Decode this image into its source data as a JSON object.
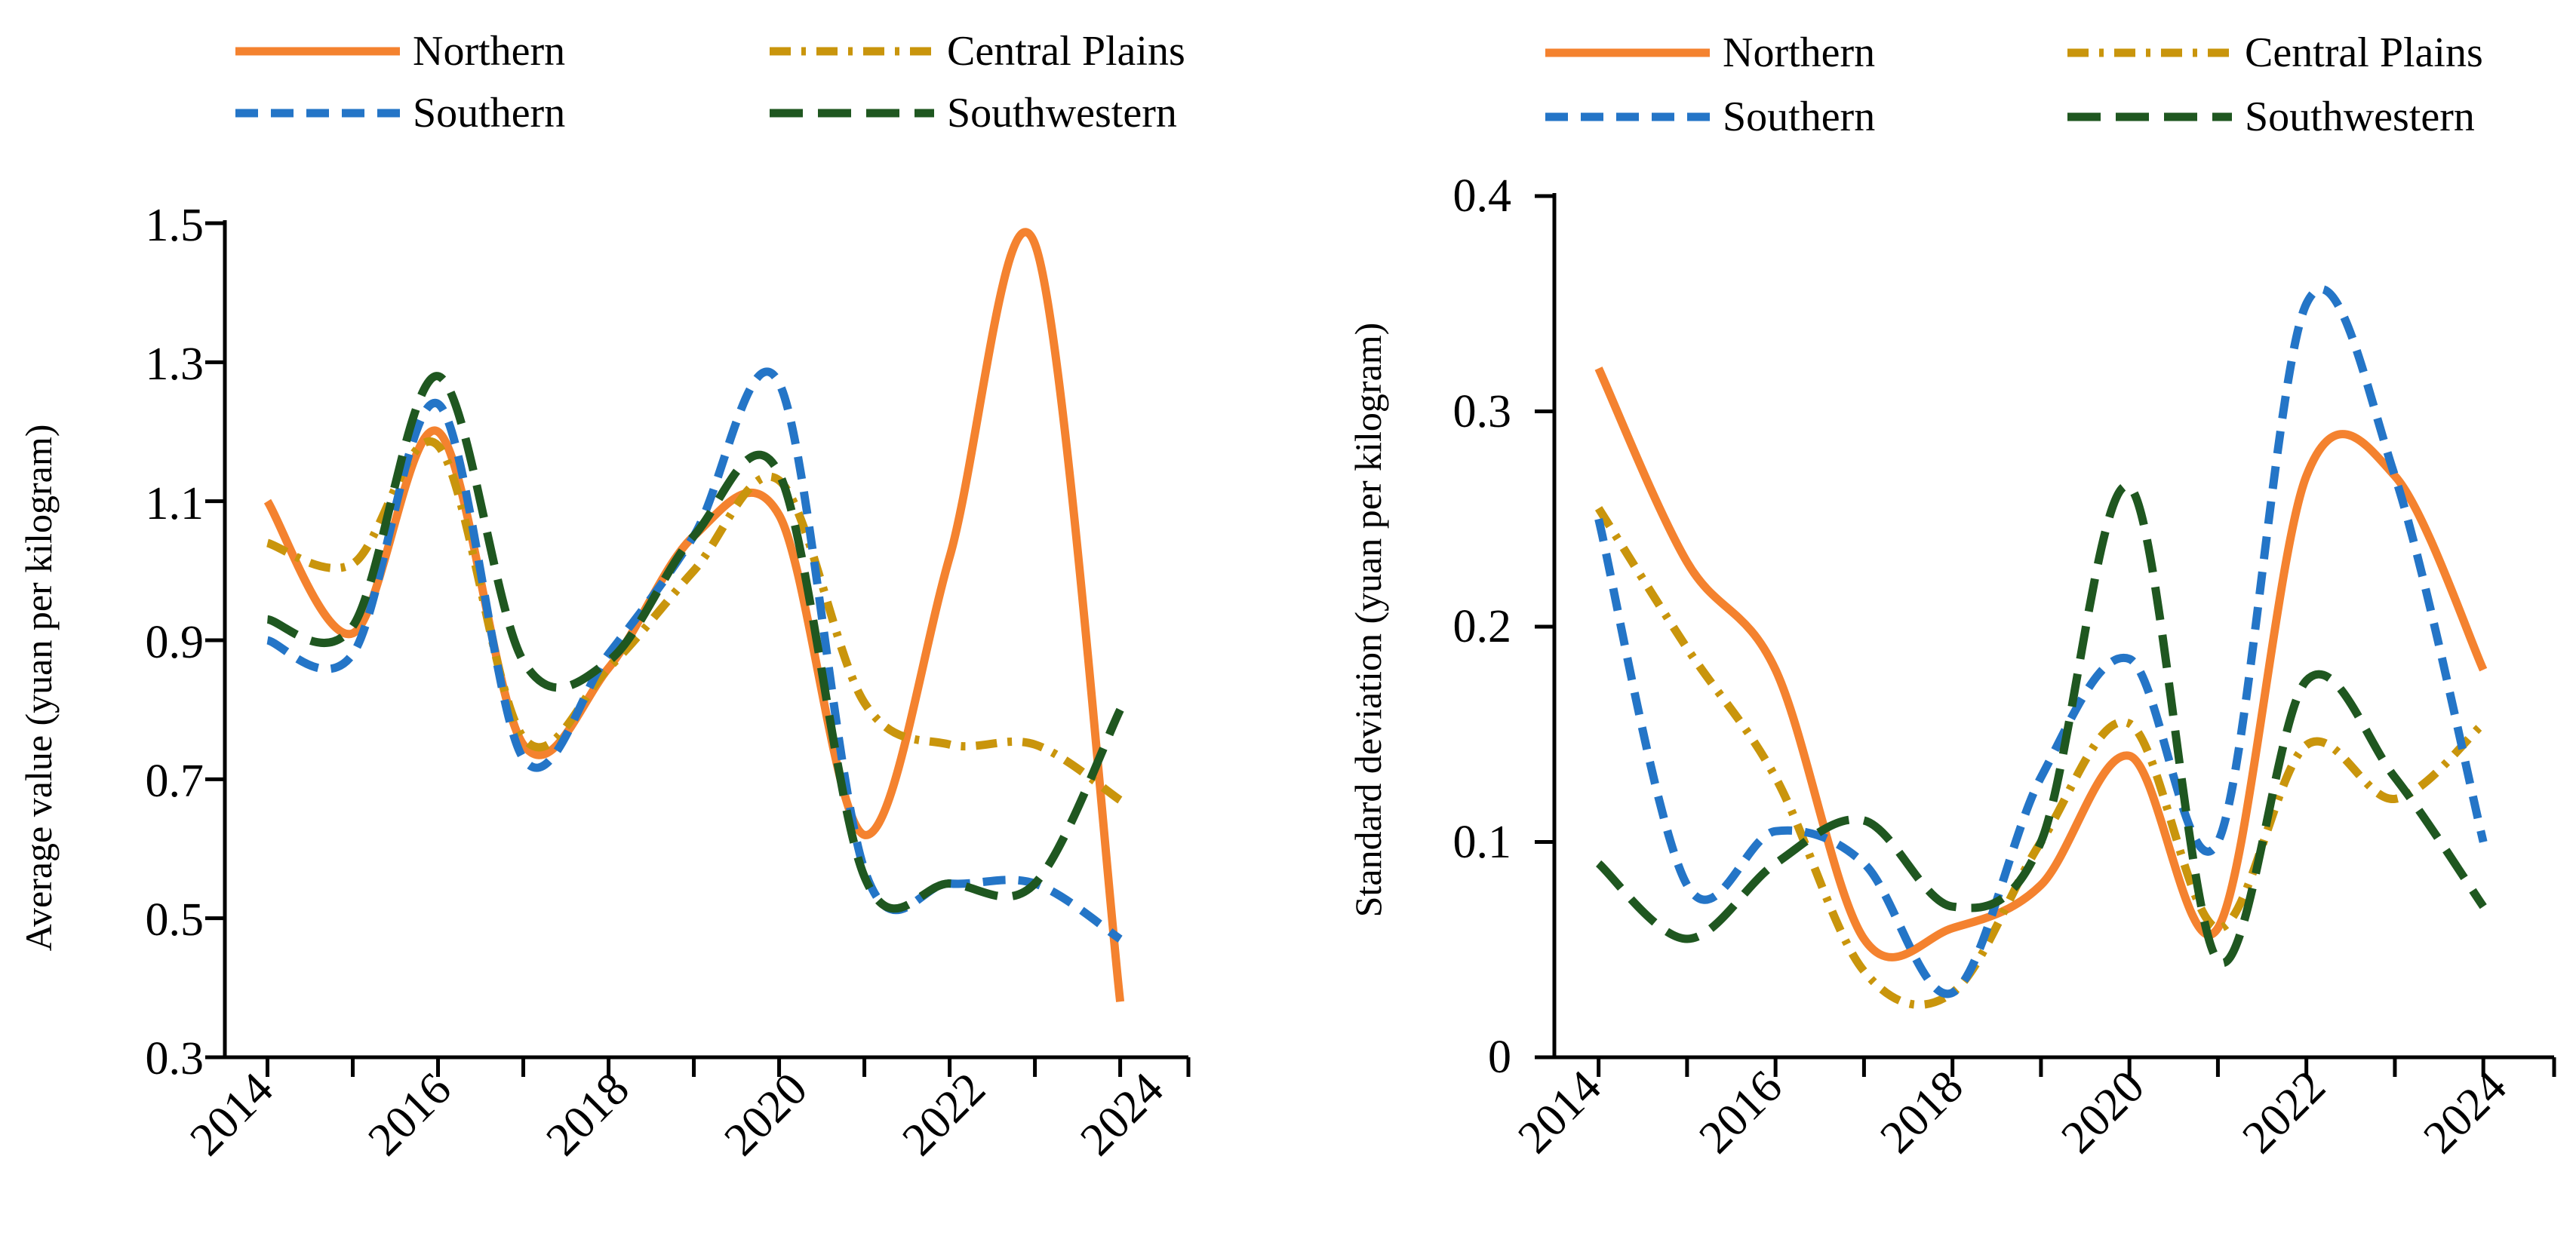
{
  "chart_data": [
    {
      "type": "line",
      "title": "",
      "xlabel": "",
      "ylabel": "Average value (yuan per kilogram)",
      "xlim": [
        2013.5,
        2024.8
      ],
      "ylim": [
        0.3,
        1.5
      ],
      "yticks": [
        "0.3",
        "0.5",
        "0.7",
        "0.9",
        "1.1",
        "1.3",
        "1.5"
      ],
      "xticks": [
        "2014",
        "2016",
        "2018",
        "2020",
        "2022",
        "2024"
      ],
      "x": [
        2014,
        2015,
        2016,
        2017,
        2018,
        2019,
        2020,
        2021,
        2022,
        2023,
        2024
      ],
      "legend_position": "top",
      "series": [
        {
          "name": "Northern",
          "color": "#F4822F",
          "dash": "solid",
          "values": [
            1.1,
            0.91,
            1.2,
            0.75,
            0.86,
            1.05,
            1.08,
            0.62,
            1.02,
            1.47,
            0.38
          ]
        },
        {
          "name": "Central Plains",
          "color": "#C9950C",
          "dash": "dashdot",
          "values": [
            1.04,
            1.01,
            1.18,
            0.76,
            0.86,
            1.0,
            1.13,
            0.81,
            0.75,
            0.75,
            0.67
          ]
        },
        {
          "name": "Southern",
          "color": "#2475C7",
          "dash": "dash",
          "values": [
            0.9,
            0.88,
            1.24,
            0.73,
            0.88,
            1.05,
            1.27,
            0.57,
            0.55,
            0.55,
            0.47
          ]
        },
        {
          "name": "Southwestern",
          "color": "#1F5720",
          "dash": "longdash",
          "values": [
            0.93,
            0.92,
            1.28,
            0.87,
            0.87,
            1.05,
            1.14,
            0.56,
            0.55,
            0.55,
            0.8
          ]
        }
      ]
    },
    {
      "type": "line",
      "title": "",
      "xlabel": "",
      "ylabel": "Standard deviation (yuan per kilogram)",
      "xlim": [
        2013.5,
        2024.8
      ],
      "ylim": [
        0,
        0.4
      ],
      "yticks": [
        "0",
        "0.1",
        "0.2",
        "0.3",
        "0.4"
      ],
      "xticks": [
        "2014",
        "2016",
        "2018",
        "2020",
        "2022",
        "2024"
      ],
      "x": [
        2014,
        2015,
        2016,
        2017,
        2018,
        2019,
        2020,
        2021,
        2022,
        2023,
        2024
      ],
      "legend_position": "top",
      "series": [
        {
          "name": "Northern",
          "color": "#F4822F",
          "dash": "solid",
          "values": [
            0.32,
            0.23,
            0.18,
            0.055,
            0.06,
            0.08,
            0.14,
            0.06,
            0.27,
            0.27,
            0.18
          ]
        },
        {
          "name": "Central Plains",
          "color": "#C9950C",
          "dash": "dashdot",
          "values": [
            0.255,
            0.19,
            0.13,
            0.04,
            0.03,
            0.1,
            0.155,
            0.06,
            0.145,
            0.12,
            0.155
          ]
        },
        {
          "name": "Southern",
          "color": "#2475C7",
          "dash": "dash",
          "values": [
            0.25,
            0.08,
            0.105,
            0.09,
            0.03,
            0.13,
            0.185,
            0.1,
            0.35,
            0.27,
            0.1
          ]
        },
        {
          "name": "Southwestern",
          "color": "#1F5720",
          "dash": "longdash",
          "values": [
            0.09,
            0.055,
            0.09,
            0.11,
            0.07,
            0.1,
            0.265,
            0.045,
            0.175,
            0.13,
            0.07
          ]
        }
      ]
    }
  ]
}
